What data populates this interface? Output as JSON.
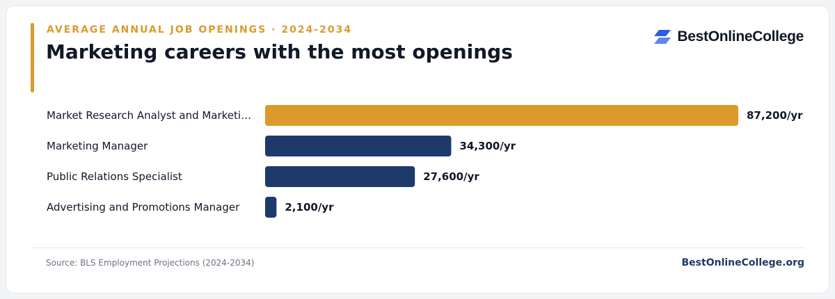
{
  "header": {
    "eyebrow": "AVERAGE ANNUAL JOB OPENINGS · 2024-2034",
    "title": "Marketing careers with the most openings"
  },
  "brand": {
    "logo_text": "BestOnlineCollege",
    "logo_icon": "stacked-parallelogram-logo-icon",
    "logo_color": "#2d5be3"
  },
  "chart_data": {
    "type": "bar",
    "orientation": "horizontal",
    "categories": [
      "Market Research Analyst and Marketi…",
      "Marketing Manager",
      "Public Relations Specialist",
      "Advertising and Promotions Manager"
    ],
    "values": [
      87200,
      34300,
      27600,
      2100
    ],
    "value_labels": [
      "87,200/yr",
      "34,300/yr",
      "27,600/yr",
      "2,100/yr"
    ],
    "colors": [
      "#db9a2b",
      "#1e3a6b",
      "#1e3a6b",
      "#1e3a6b"
    ],
    "xlim": [
      0,
      87200
    ],
    "grid": false,
    "legend": "none"
  },
  "footer": {
    "source": "Source: BLS Employment Projections (2024-2034)",
    "site": "BestOnlineCollege.org"
  }
}
